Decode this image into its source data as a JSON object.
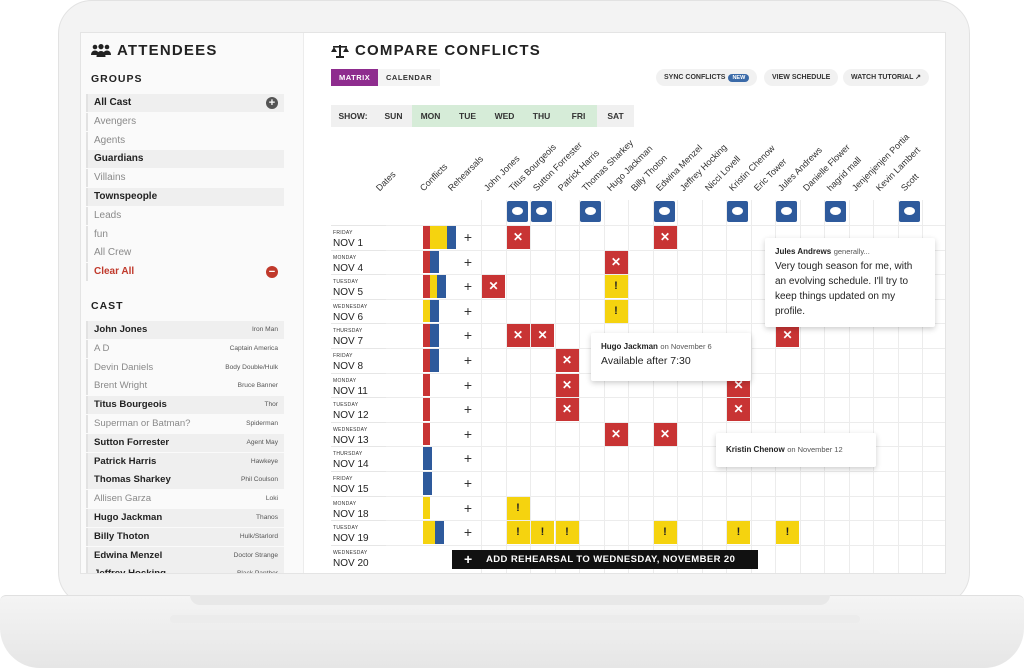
{
  "sidebar": {
    "title": "ATTENDEES",
    "groups_heading": "GROUPS",
    "groups": [
      {
        "label": "All Cast",
        "style": "sel"
      },
      {
        "label": "Avengers",
        "style": "dim"
      },
      {
        "label": "Agents",
        "style": "dim"
      },
      {
        "label": "Guardians",
        "style": "sel"
      },
      {
        "label": "Villains",
        "style": "dim"
      },
      {
        "label": "Townspeople",
        "style": "sel"
      },
      {
        "label": "Leads",
        "style": "dim"
      },
      {
        "label": "fun",
        "style": "dim"
      },
      {
        "label": "All Crew",
        "style": "dim"
      },
      {
        "label": "Clear All",
        "style": "clr"
      }
    ],
    "cast_heading": "CAST",
    "cast": [
      {
        "name": "John Jones",
        "role": "Iron Man",
        "style": "sel"
      },
      {
        "name": "A D",
        "role": "Captain America",
        "style": "dim"
      },
      {
        "name": "Devin Daniels",
        "role": "Body Double/Hulk",
        "style": "dim"
      },
      {
        "name": "Brent Wright",
        "role": "Bruce Banner",
        "style": "dim"
      },
      {
        "name": "Titus Bourgeois",
        "role": "Thor",
        "style": "sel"
      },
      {
        "name": "Superman or Batman?",
        "role": "Spiderman",
        "style": "dim"
      },
      {
        "name": "Sutton Forrester",
        "role": "Agent May",
        "style": "sel"
      },
      {
        "name": "Patrick Harris",
        "role": "Hawkeye",
        "style": "sel"
      },
      {
        "name": "Thomas Sharkey",
        "role": "Phil Coulson",
        "style": "sel"
      },
      {
        "name": "Allisen Garza",
        "role": "Loki",
        "style": "dim"
      },
      {
        "name": "Hugo Jackman",
        "role": "Thanos",
        "style": "sel"
      },
      {
        "name": "Billy Thoton",
        "role": "Hulk/Starlord",
        "style": "sel"
      },
      {
        "name": "Edwina Menzel",
        "role": "Doctor Strange",
        "style": "sel"
      },
      {
        "name": "Jeffrey Hocking",
        "role": "Black Panther",
        "style": "sel"
      }
    ]
  },
  "main": {
    "title": "COMPARE CONFLICTS",
    "tabs": [
      "MATRIX",
      "CALENDAR"
    ],
    "actions": {
      "sync": "SYNC CONFLICTS",
      "sync_badge": "NEW",
      "view": "VIEW SCHEDULE",
      "tutorial": "WATCH TUTORIAL ↗"
    },
    "show_label": "SHOW:",
    "days": [
      {
        "label": "SUN",
        "on": false
      },
      {
        "label": "MON",
        "on": true
      },
      {
        "label": "TUE",
        "on": true
      },
      {
        "label": "WED",
        "on": true
      },
      {
        "label": "THU",
        "on": true
      },
      {
        "label": "FRI",
        "on": true
      },
      {
        "label": "SAT",
        "on": false
      }
    ],
    "fixed_columns": [
      "Dates",
      "Conflicts",
      "Rehearsals"
    ],
    "people": [
      "John Jones",
      "Titus Bourgeois",
      "Sutton Forrester",
      "Patrick Harris",
      "Thomas Sharkey",
      "Hugo Jackman",
      "Billy Thoton",
      "Edwina Menzel",
      "Jeffrey Hocking",
      "Nicci Lovell",
      "Kristin Chenow",
      "Eric Tower",
      "Jules Andrews",
      "Danielle Flower",
      "hagrid mall",
      "Jenjenjenjen Portia",
      "Kevin Lambert",
      "Scott"
    ],
    "comment_columns": [
      1,
      2,
      4,
      7,
      10,
      12,
      14,
      17
    ],
    "dates": [
      {
        "wd": "FRIDAY",
        "d": "NOV 1"
      },
      {
        "wd": "MONDAY",
        "d": "NOV 4"
      },
      {
        "wd": "TUESDAY",
        "d": "NOV 5"
      },
      {
        "wd": "WEDNESDAY",
        "d": "NOV 6"
      },
      {
        "wd": "THURSDAY",
        "d": "NOV 7"
      },
      {
        "wd": "FRIDAY",
        "d": "NOV 8"
      },
      {
        "wd": "MONDAY",
        "d": "NOV 11"
      },
      {
        "wd": "TUESDAY",
        "d": "NOV 12"
      },
      {
        "wd": "WEDNESDAY",
        "d": "NOV 13"
      },
      {
        "wd": "THURSDAY",
        "d": "NOV 14"
      },
      {
        "wd": "FRIDAY",
        "d": "NOV 15"
      },
      {
        "wd": "MONDAY",
        "d": "NOV 18"
      },
      {
        "wd": "TUESDAY",
        "d": "NOV 19"
      },
      {
        "wd": "WEDNESDAY",
        "d": "NOV 20"
      }
    ],
    "conflicts": [
      {
        "r": 0,
        "c": 1,
        "t": "x"
      },
      {
        "r": 0,
        "c": 7,
        "t": "x"
      },
      {
        "r": 1,
        "c": 5,
        "t": "x"
      },
      {
        "r": 2,
        "c": 0,
        "t": "x"
      },
      {
        "r": 2,
        "c": 5,
        "t": "ex"
      },
      {
        "r": 3,
        "c": 5,
        "t": "ex"
      },
      {
        "r": 4,
        "c": 1,
        "t": "x"
      },
      {
        "r": 4,
        "c": 2,
        "t": "x"
      },
      {
        "r": 4,
        "c": 12,
        "t": "x"
      },
      {
        "r": 5,
        "c": 3,
        "t": "x"
      },
      {
        "r": 6,
        "c": 3,
        "t": "x"
      },
      {
        "r": 6,
        "c": 10,
        "t": "x"
      },
      {
        "r": 7,
        "c": 3,
        "t": "x"
      },
      {
        "r": 7,
        "c": 10,
        "t": "x"
      },
      {
        "r": 8,
        "c": 5,
        "t": "x"
      },
      {
        "r": 8,
        "c": 7,
        "t": "x"
      },
      {
        "r": 11,
        "c": 1,
        "t": "ex"
      },
      {
        "r": 12,
        "c": 1,
        "t": "ex"
      },
      {
        "r": 12,
        "c": 2,
        "t": "ex"
      },
      {
        "r": 12,
        "c": 3,
        "t": "ex"
      },
      {
        "r": 12,
        "c": 7,
        "t": "ex"
      },
      {
        "r": 12,
        "c": 10,
        "t": "ex"
      },
      {
        "r": 12,
        "c": 12,
        "t": "ex"
      }
    ],
    "tooltips": {
      "jules": {
        "name": "Jules Andrews",
        "suffix": "generally...",
        "body": "Very tough season for me, with an evolving schedule. I'll try to keep things updated on my profile."
      },
      "hugo": {
        "name": "Hugo Jackman",
        "suffix": "on November 6",
        "body": "Available after 7:30"
      },
      "kristin": {
        "name": "Kristin Chenow",
        "suffix": "on November 12"
      }
    },
    "add_rehearsal": "ADD REHEARSAL TO WEDNESDAY, NOVEMBER 20",
    "colors": {
      "conflict": "#c83434",
      "maybe": "#f5d30f",
      "comment": "#2e5a9c",
      "accent": "#8e2c8e"
    }
  }
}
